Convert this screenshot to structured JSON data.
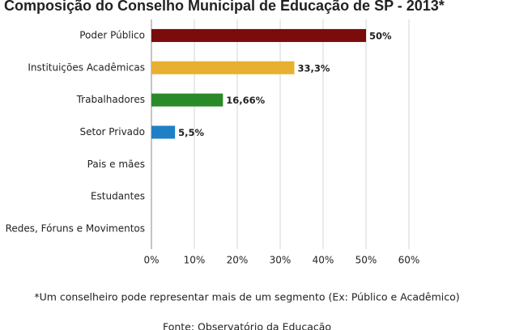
{
  "chart_data": {
    "type": "hbar",
    "title": "Composição do Conselho Municipal de Educação de SP - 2013*",
    "categories": [
      "Poder Público",
      "Instituições Acadêmicas",
      "Trabalhadores",
      "Setor Privado",
      "Pais e mães",
      "Estudantes",
      "Redes, Fóruns e Movimentos"
    ],
    "values": [
      50,
      33.3,
      16.66,
      5.5,
      null,
      null,
      null
    ],
    "value_labels": [
      "50%",
      "33,3%",
      "16,66%",
      "5,5%",
      null,
      null,
      null
    ],
    "colors": [
      "#7b0c0c",
      "#e8b030",
      "#2a8a2a",
      "#1f80c8",
      null,
      null,
      null
    ],
    "xlim": [
      0,
      60
    ],
    "xticks": [
      {
        "value": 0,
        "label": "0%"
      },
      {
        "value": 10,
        "label": "10%"
      },
      {
        "value": 20,
        "label": "20%"
      },
      {
        "value": 30,
        "label": "30%"
      },
      {
        "value": 40,
        "label": "40%"
      },
      {
        "value": 50,
        "label": "50%"
      },
      {
        "value": 60,
        "label": "60%"
      }
    ],
    "grid": true,
    "footnote": "*Um conselheiro pode representar mais de um segmento (Ex: Público e Acadêmico)",
    "source": "Fonte: Observatório da Educação"
  }
}
